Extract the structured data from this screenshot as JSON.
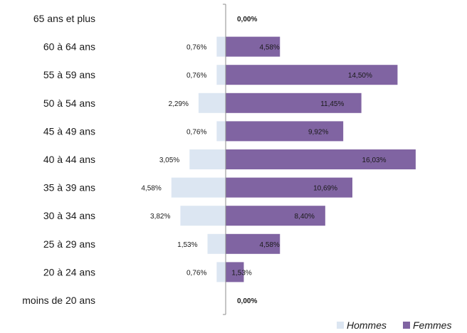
{
  "chart_data": {
    "type": "bar",
    "orientation": "horizontal",
    "layout": "population-pyramid",
    "categories": [
      "65 ans et plus",
      "60 à 64 ans",
      "55 à 59 ans",
      "50 à 54 ans",
      "45 à 49 ans",
      "40 à 44 ans",
      "35 à 39 ans",
      "30 à 34 ans",
      "25 à 29 ans",
      "20 à 24 ans",
      "moins de 20 ans"
    ],
    "series": [
      {
        "name": "Hommes",
        "color": "#dce6f2",
        "values": [
          0,
          0.76,
          0.76,
          2.29,
          0.76,
          3.05,
          4.58,
          3.82,
          1.53,
          0.76,
          0
        ],
        "labels": [
          "",
          "0,76%",
          "0,76%",
          "2,29%",
          "0,76%",
          "3,05%",
          "4,58%",
          "3,82%",
          "1,53%",
          "0,76%",
          ""
        ]
      },
      {
        "name": "Femmes",
        "color": "#8064a2",
        "values": [
          0,
          4.58,
          14.5,
          11.45,
          9.92,
          16.03,
          10.69,
          8.4,
          4.58,
          1.53,
          0
        ],
        "labels": [
          "0,00%",
          "4,58%",
          "14,50%",
          "11,45%",
          "9,92%",
          "16,03%",
          "10,69%",
          "8,40%",
          "4,58%",
          "1,53%",
          "0,00%"
        ]
      }
    ],
    "unit": "%",
    "legend_position": "bottom-right",
    "grid": false
  }
}
